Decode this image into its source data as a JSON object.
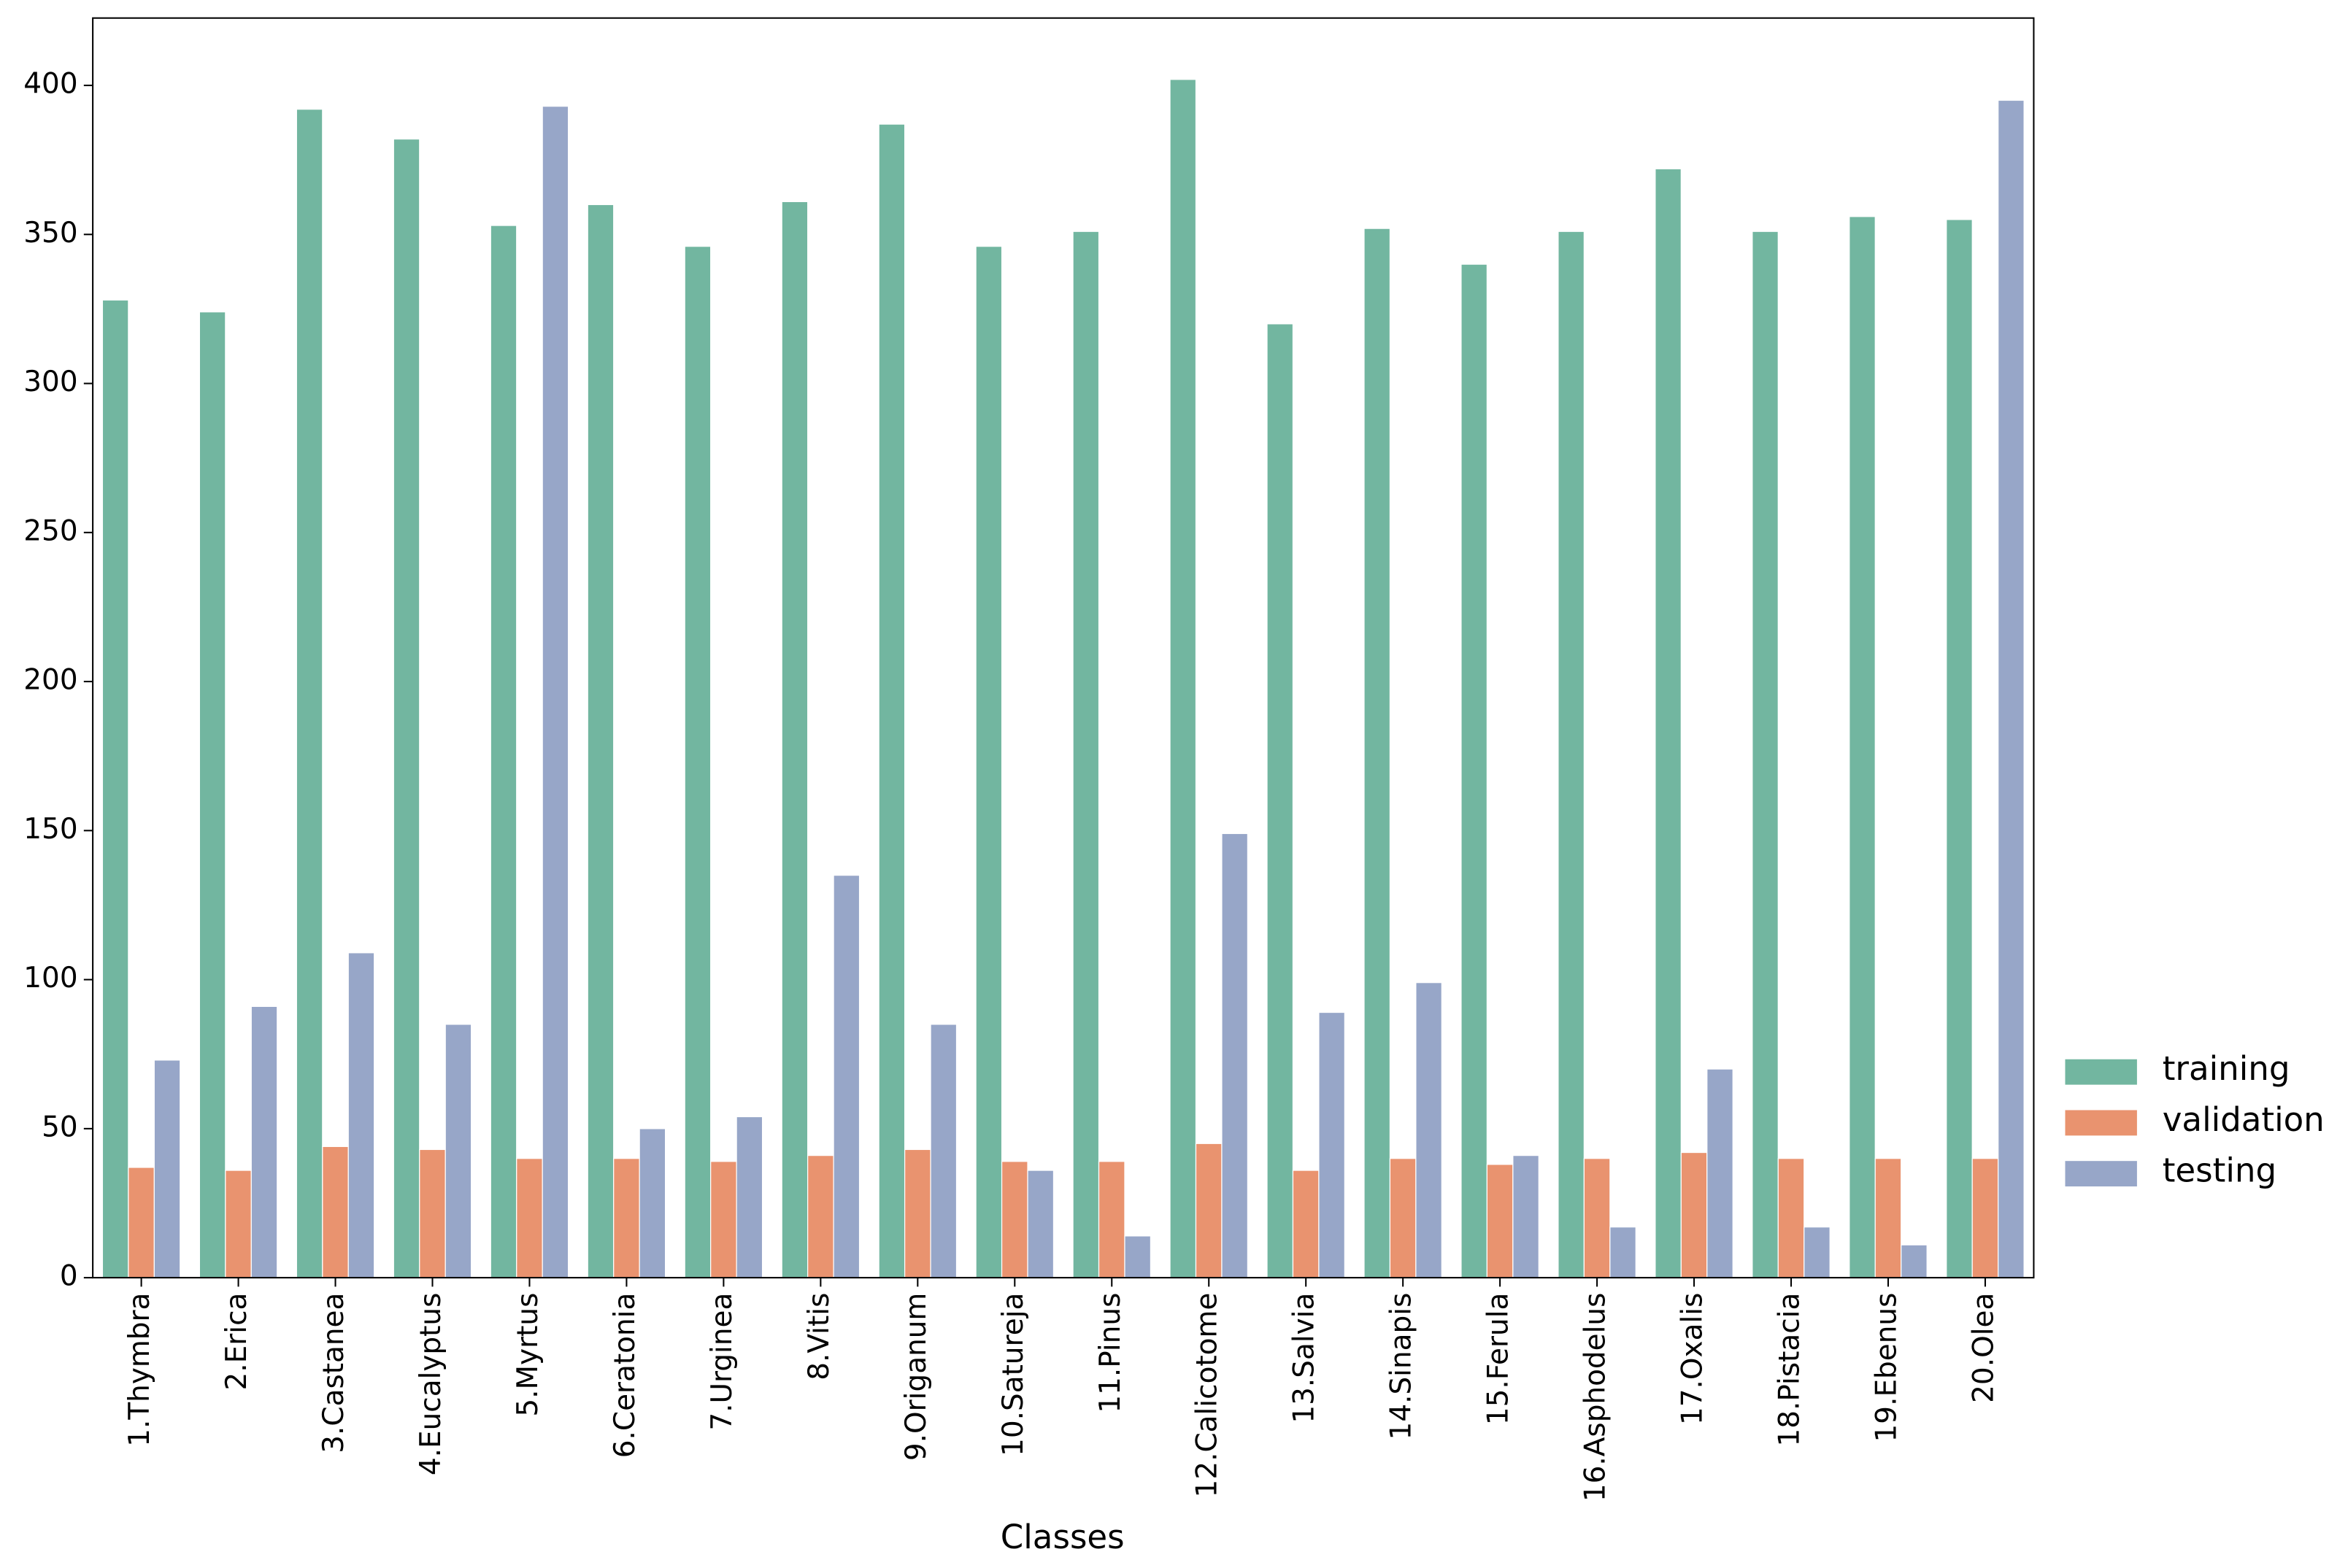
{
  "chart_data": {
    "type": "grouped-bar",
    "x_label": "Classes",
    "categories": [
      "1.Thymbra",
      "2.Erica",
      "3.Castanea",
      "4.Eucalyptus",
      "5.Myrtus",
      "6.Ceratonia",
      "7.Urginea",
      "8.Vitis",
      "9.Origanum",
      "10.Satureja",
      "11.Pinus",
      "12.Calicotome",
      "13.Salvia",
      "14.Sinapis",
      "15.Ferula",
      "16.Asphodelus",
      "17.Oxalis",
      "18.Pistacia",
      "19.Ebenus",
      "20.Olea"
    ],
    "series": [
      {
        "name": "training",
        "color": "#72b6a0",
        "values": [
          328,
          324,
          392,
          382,
          353,
          360,
          346,
          361,
          387,
          346,
          351,
          402,
          320,
          352,
          340,
          351,
          372,
          351,
          356,
          355
        ]
      },
      {
        "name": "validation",
        "color": "#e9936f",
        "values": [
          37,
          36,
          44,
          43,
          40,
          40,
          39,
          41,
          43,
          39,
          39,
          45,
          36,
          40,
          38,
          40,
          42,
          40,
          40,
          40
        ]
      },
      {
        "name": "testing",
        "color": "#97a6c8",
        "values": [
          73,
          91,
          109,
          85,
          393,
          50,
          54,
          135,
          85,
          36,
          14,
          149,
          89,
          99,
          41,
          17,
          70,
          17,
          11,
          395
        ]
      }
    ],
    "ylim": [
      0,
      422.6
    ],
    "yticks": [
      0,
      50,
      100,
      150,
      200,
      250,
      300,
      350,
      400
    ],
    "legend": "right"
  }
}
